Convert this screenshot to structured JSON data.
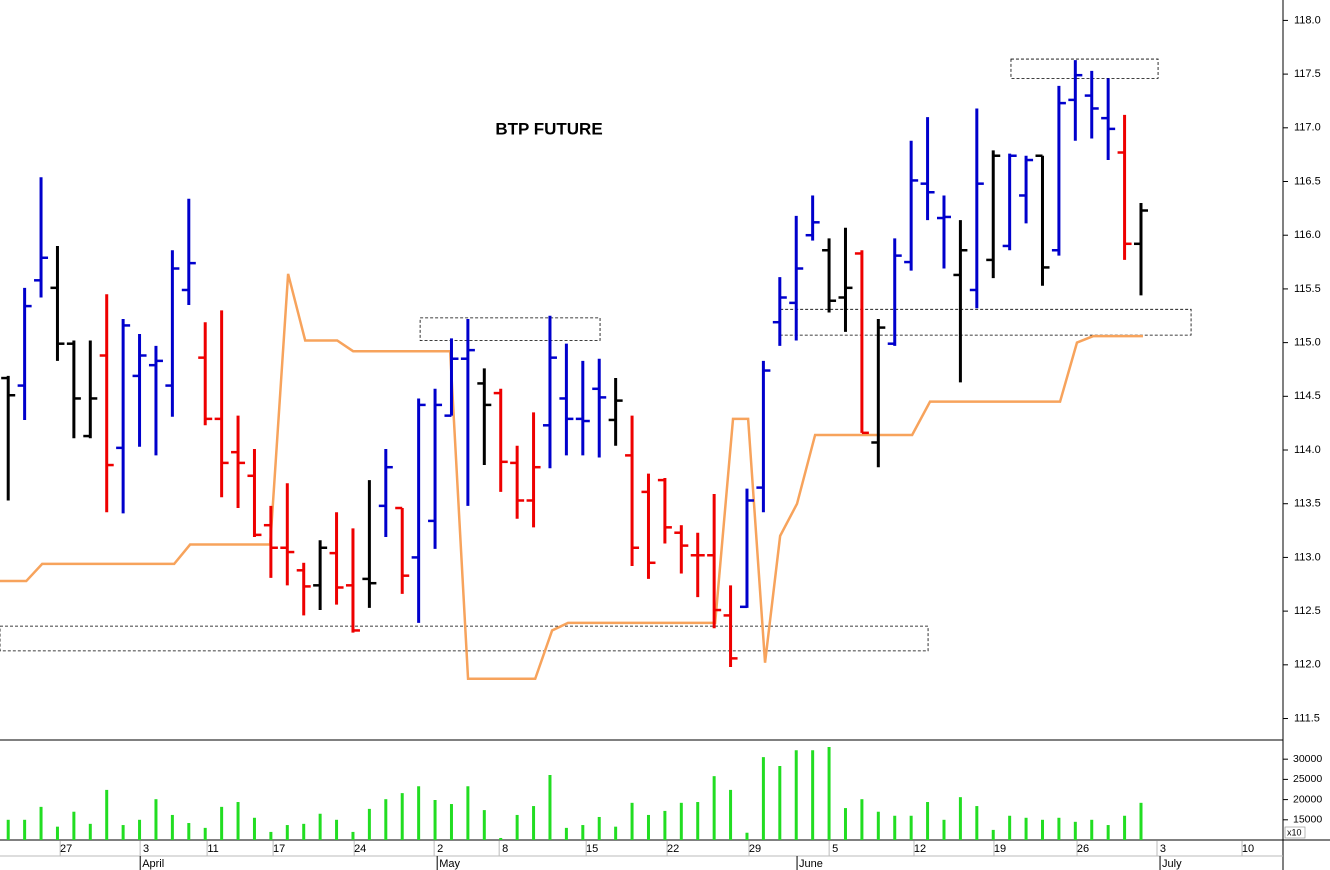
{
  "chart_data": [
    {
      "type": "ohlc",
      "title": "BTP FUTURE",
      "xlim": [
        -0.5,
        77.65
      ],
      "ylim": [
        111.3,
        118.19
      ],
      "yticks": [
        {
          "value": 111.5,
          "label": "111.5"
        },
        {
          "value": 112,
          "label": "112.0"
        },
        {
          "value": 112.5,
          "label": "112.5"
        },
        {
          "value": 113,
          "label": "113.0"
        },
        {
          "value": 113.5,
          "label": "113.5"
        },
        {
          "value": 114,
          "label": "114.0"
        },
        {
          "value": 114.5,
          "label": "114.5"
        },
        {
          "value": 115,
          "label": "115.0"
        },
        {
          "value": 115.5,
          "label": "115.5"
        },
        {
          "value": 116,
          "label": "116.0"
        },
        {
          "value": 116.5,
          "label": "116.5"
        },
        {
          "value": 117,
          "label": "117.0"
        },
        {
          "value": 117.5,
          "label": "117.5"
        },
        {
          "value": 118,
          "label": "118.0"
        }
      ],
      "open": [
        114.67,
        114.6,
        115.58,
        115.51,
        114.99,
        114.13,
        114.88,
        114.02,
        114.69,
        114.79,
        114.6,
        115.49,
        114.86,
        114.29,
        113.98,
        113.76,
        113.3,
        113.09,
        112.88,
        112.74,
        113.04,
        112.74,
        112.8,
        113.48,
        113.46,
        113.0,
        113.34,
        114.32,
        114.85,
        114.62,
        114.53,
        113.88,
        113.53,
        114.23,
        114.48,
        114.29,
        114.57,
        114.28,
        113.95,
        113.61,
        113.72,
        113.23,
        113.02,
        113.02,
        112.46,
        112.54,
        113.65,
        115.19,
        115.37,
        116.0,
        115.86,
        115.42,
        115.83,
        114.07,
        114.99,
        115.75,
        116.48,
        116.16,
        115.63,
        115.49,
        115.77,
        115.9,
        116.37,
        116.74,
        115.86,
        117.26,
        117.3,
        117.09,
        116.77,
        115.92
      ],
      "high": [
        114.69,
        115.51,
        116.54,
        115.9,
        115.02,
        115.02,
        115.45,
        115.22,
        115.08,
        114.97,
        115.86,
        116.34,
        115.19,
        115.3,
        114.32,
        114.01,
        113.48,
        113.69,
        112.95,
        113.16,
        113.42,
        113.27,
        113.72,
        114.01,
        113.46,
        114.48,
        114.57,
        115.04,
        115.22,
        114.76,
        114.57,
        114.04,
        114.35,
        115.25,
        114.99,
        114.83,
        114.85,
        114.67,
        114.32,
        113.78,
        113.74,
        113.3,
        113.23,
        113.59,
        112.74,
        113.64,
        114.83,
        115.61,
        116.18,
        116.37,
        115.97,
        116.07,
        115.86,
        115.22,
        115.97,
        116.88,
        117.1,
        116.37,
        116.14,
        117.18,
        116.79,
        116.76,
        116.74,
        116.74,
        117.39,
        117.63,
        117.53,
        117.46,
        117.12,
        116.3
      ],
      "low": [
        113.53,
        114.28,
        115.42,
        114.83,
        114.11,
        114.11,
        113.42,
        113.41,
        114.03,
        113.95,
        114.31,
        115.35,
        114.23,
        113.56,
        113.46,
        113.19,
        112.81,
        112.74,
        112.46,
        112.51,
        112.56,
        112.3,
        112.53,
        113.19,
        112.66,
        112.39,
        113.08,
        114.32,
        113.48,
        113.86,
        113.61,
        113.36,
        113.28,
        113.83,
        113.95,
        113.95,
        113.93,
        114.04,
        112.92,
        112.8,
        113.13,
        112.85,
        112.63,
        112.34,
        111.98,
        112.53,
        113.42,
        114.97,
        115.02,
        115.95,
        115.28,
        115.1,
        114.16,
        113.84,
        114.97,
        115.67,
        116.14,
        115.69,
        114.63,
        115.32,
        115.6,
        115.86,
        116.11,
        115.53,
        115.81,
        116.88,
        116.9,
        116.7,
        115.77,
        115.44
      ],
      "close": [
        114.51,
        115.34,
        115.79,
        114.99,
        114.48,
        114.48,
        113.86,
        115.16,
        114.88,
        114.83,
        115.69,
        115.74,
        114.29,
        113.88,
        113.88,
        113.21,
        113.09,
        113.05,
        112.73,
        113.09,
        112.72,
        112.32,
        112.76,
        113.84,
        112.83,
        114.42,
        114.42,
        114.85,
        114.93,
        114.42,
        113.89,
        113.53,
        113.84,
        114.86,
        114.29,
        114.27,
        114.49,
        114.46,
        113.09,
        112.95,
        113.28,
        113.11,
        113.02,
        112.51,
        112.06,
        113.53,
        114.74,
        115.42,
        115.69,
        116.12,
        115.39,
        115.51,
        114.16,
        115.14,
        115.81,
        116.51,
        116.4,
        116.17,
        115.86,
        116.48,
        116.74,
        116.74,
        116.7,
        115.7,
        117.23,
        117.49,
        117.18,
        116.99,
        115.92,
        116.23
      ],
      "colors": [
        "#000000",
        "#0000cc",
        "#0000cc",
        "#000000",
        "#000000",
        "#000000",
        "#ee0000",
        "#0000cc",
        "#0000cc",
        "#0000cc",
        "#0000cc",
        "#0000cc",
        "#ee0000",
        "#ee0000",
        "#ee0000",
        "#ee0000",
        "#ee0000",
        "#ee0000",
        "#ee0000",
        "#000000",
        "#ee0000",
        "#ee0000",
        "#000000",
        "#0000cc",
        "#ee0000",
        "#0000cc",
        "#0000cc",
        "#0000cc",
        "#0000cc",
        "#000000",
        "#ee0000",
        "#ee0000",
        "#ee0000",
        "#0000cc",
        "#0000cc",
        "#0000cc",
        "#0000cc",
        "#000000",
        "#ee0000",
        "#ee0000",
        "#ee0000",
        "#ee0000",
        "#ee0000",
        "#ee0000",
        "#ee0000",
        "#0000cc",
        "#0000cc",
        "#0000cc",
        "#0000cc",
        "#0000cc",
        "#000000",
        "#000000",
        "#ee0000",
        "#000000",
        "#0000cc",
        "#0000cc",
        "#0000cc",
        "#0000cc",
        "#000000",
        "#0000cc",
        "#000000",
        "#0000cc",
        "#0000cc",
        "#000000",
        "#0000cc",
        "#0000cc",
        "#0000cc",
        "#0000cc",
        "#ee0000",
        "#000000"
      ],
      "line": {
        "color": "#f7a35c",
        "x": [
          -0.5,
          1.1,
          2.07,
          10.11,
          11.08,
          15.96,
          17.05,
          18.09,
          20.04,
          21.01,
          26.92,
          28.01,
          32.1,
          33.13,
          34.1,
          43.06,
          44.15,
          45.07,
          46.1,
          47.02,
          48.05,
          49.15,
          55.06,
          56.15,
          64.07,
          65.1,
          66.08,
          69.12
        ],
        "values": [
          112.78,
          112.78,
          112.94,
          112.94,
          113.12,
          113.12,
          115.64,
          115.02,
          115.02,
          114.92,
          114.92,
          111.87,
          111.87,
          112.32,
          112.39,
          112.39,
          114.29,
          114.29,
          112.02,
          113.2,
          113.5,
          114.14,
          114.14,
          114.45,
          114.45,
          115.0,
          115.06,
          115.06
        ]
      },
      "zones": [
        {
          "x": [
            25.09,
            36.05
          ],
          "y": [
            115.02,
            115.23
          ]
        },
        {
          "x": [
            61.08,
            70.04
          ],
          "y": [
            117.46,
            117.64
          ]
        },
        {
          "x": [
            47.02,
            72.05
          ],
          "y": [
            115.07,
            115.31
          ]
        },
        {
          "x": [
            -0.5,
            56.03
          ],
          "y": [
            112.13,
            112.36
          ]
        }
      ]
    },
    {
      "type": "bar",
      "color": "#22dd22",
      "unit_label": "x10",
      "xlim": [
        -0.5,
        77.65
      ],
      "ylim": [
        10000,
        34500
      ],
      "yticks": [
        15000,
        20000,
        25000,
        30000
      ],
      "values": [
        15000,
        15000,
        18200,
        13300,
        17000,
        14000,
        22400,
        13700,
        15000,
        20100,
        16200,
        14200,
        13000,
        18200,
        19400,
        15500,
        12000,
        13700,
        14000,
        16500,
        15000,
        12000,
        17700,
        20100,
        21600,
        23300,
        19900,
        18900,
        23300,
        17400,
        10500,
        16200,
        18400,
        26100,
        13000,
        13700,
        15700,
        13300,
        19200,
        16200,
        17200,
        19200,
        19400,
        25800,
        22400,
        11800,
        30500,
        28300,
        32200,
        32200,
        33000,
        17900,
        20100,
        17000,
        16000,
        16000,
        19400,
        15000,
        20600,
        18400,
        12500,
        16000,
        15500,
        15000,
        15500,
        14500,
        15000,
        13700,
        16000,
        19200
      ],
      "xticks": [
        {
          "value": 3.53,
          "label": "27"
        },
        {
          "value": 8.4,
          "label": "3"
        },
        {
          "value": 12.48,
          "label": "11"
        },
        {
          "value": 16.5,
          "label": "17"
        },
        {
          "value": 21.44,
          "label": "24"
        },
        {
          "value": 26.31,
          "label": "2"
        },
        {
          "value": 30.27,
          "label": "8"
        },
        {
          "value": 35.57,
          "label": "15"
        },
        {
          "value": 40.5,
          "label": "22"
        },
        {
          "value": 45.49,
          "label": "29"
        },
        {
          "value": 50.37,
          "label": "5"
        },
        {
          "value": 55.54,
          "label": "12"
        },
        {
          "value": 60.41,
          "label": "19"
        },
        {
          "value": 65.47,
          "label": "26"
        },
        {
          "value": 70.34,
          "label": "3"
        },
        {
          "value": 75.52,
          "label": "10"
        }
      ],
      "months": [
        {
          "value": 8.04,
          "label": "April"
        },
        {
          "value": 26.13,
          "label": "May"
        },
        {
          "value": 48.05,
          "label": "June"
        },
        {
          "value": 70.16,
          "label": "July"
        }
      ]
    }
  ]
}
